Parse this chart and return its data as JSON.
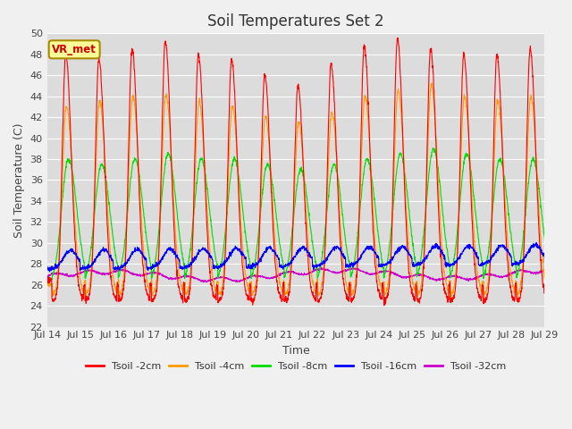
{
  "title": "Soil Temperatures Set 2",
  "xlabel": "Time",
  "ylabel": "Soil Temperature (C)",
  "ylim": [
    22,
    50
  ],
  "yticks": [
    22,
    24,
    26,
    28,
    30,
    32,
    34,
    36,
    38,
    40,
    42,
    44,
    46,
    48,
    50
  ],
  "xlim_start": 0,
  "xlim_end": 360,
  "xtick_positions": [
    0,
    24,
    48,
    72,
    96,
    120,
    144,
    168,
    192,
    216,
    240,
    264,
    288,
    312,
    336,
    360
  ],
  "xtick_labels": [
    "Jul 14",
    "Jul 15",
    "Jul 16",
    "Jul 17",
    "Jul 18",
    "Jul 19",
    "Jul 20",
    "Jul 21",
    "Jul 22",
    "Jul 23",
    "Jul 24",
    "Jul 25",
    "Jul 26",
    "Jul 27",
    "Jul 28",
    "Jul 29"
  ],
  "legend_label": "VR_met",
  "series_labels": [
    "Tsoil -2cm",
    "Tsoil -4cm",
    "Tsoil -8cm",
    "Tsoil -16cm",
    "Tsoil -32cm"
  ],
  "series_colors": [
    "#ff0000",
    "#ff9900",
    "#00dd00",
    "#0000ff",
    "#cc00cc"
  ],
  "background_color": "#dcdcdc",
  "grid_color": "#ffffff",
  "fig_bg_color": "#f0f0f0",
  "title_fontsize": 12,
  "axis_fontsize": 9,
  "tick_fontsize": 8,
  "n_points": 2160
}
